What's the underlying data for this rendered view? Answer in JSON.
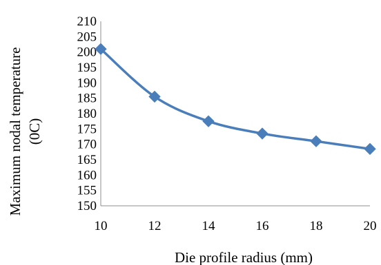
{
  "chart_data": {
    "type": "line",
    "title": "",
    "xlabel": "Die profile radius (mm)",
    "ylabel_line1": "Maximum nodal temperature",
    "ylabel_line2": "(0C)",
    "x": [
      10,
      12,
      14,
      16,
      18,
      20
    ],
    "x_ticks": [
      "10",
      "12",
      "14",
      "16",
      "18",
      "20"
    ],
    "y_ticks": [
      "150",
      "155",
      "160",
      "165",
      "170",
      "175",
      "180",
      "185",
      "190",
      "195",
      "200",
      "205",
      "210"
    ],
    "ylim": [
      150,
      210
    ],
    "xlim": [
      10,
      20
    ],
    "grid": false,
    "legend": "none",
    "series": [
      {
        "values": [
          201,
          185.5,
          177.5,
          173.5,
          171,
          168.5
        ],
        "color": "#4a7ebb",
        "marker": "diamond",
        "smooth": true
      }
    ]
  }
}
